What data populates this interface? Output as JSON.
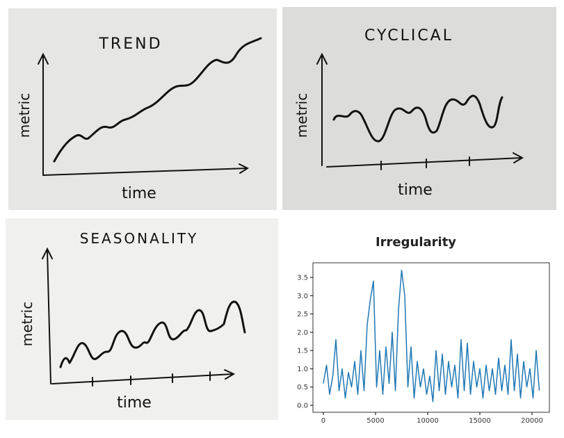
{
  "panels": {
    "trend": {
      "title": "TREND",
      "y_label": "metric",
      "x_label": "time"
    },
    "cyclical": {
      "title": "CYCLICAL",
      "y_label": "metric",
      "x_label": "time"
    },
    "seasonality": {
      "title": "SEASONALITY",
      "y_label": "metric",
      "x_label": "time"
    }
  },
  "chart_data": {
    "type": "line",
    "title": "Irregularity",
    "x": [
      0,
      300,
      600,
      900,
      1200,
      1500,
      1800,
      2100,
      2400,
      2700,
      3000,
      3300,
      3600,
      3900,
      4200,
      4500,
      4800,
      5100,
      5400,
      5700,
      6000,
      6300,
      6600,
      6900,
      7200,
      7500,
      7800,
      8100,
      8400,
      8700,
      9000,
      9300,
      9600,
      9900,
      10200,
      10500,
      10800,
      11100,
      11400,
      11700,
      12000,
      12300,
      12600,
      12900,
      13200,
      13500,
      13800,
      14100,
      14400,
      14700,
      15000,
      15300,
      15600,
      15900,
      16200,
      16500,
      16800,
      17100,
      17400,
      17700,
      18000,
      18300,
      18600,
      18900,
      19200,
      19500,
      19800,
      20100,
      20400,
      20700
    ],
    "series": [
      {
        "color": "#1f77b4",
        "values": [
          0.6,
          1.1,
          0.3,
          0.8,
          1.8,
          0.4,
          1.0,
          0.2,
          0.9,
          0.5,
          1.2,
          0.3,
          1.5,
          0.4,
          2.2,
          2.9,
          3.4,
          0.5,
          1.5,
          0.3,
          1.6,
          0.6,
          2.0,
          0.4,
          2.6,
          3.7,
          3.0,
          0.5,
          1.6,
          0.2,
          1.2,
          0.5,
          1.0,
          0.3,
          0.8,
          0.1,
          1.5,
          0.4,
          1.4,
          0.3,
          1.2,
          0.5,
          1.1,
          0.2,
          1.8,
          0.4,
          1.7,
          0.3,
          1.2,
          0.5,
          1.0,
          0.2,
          1.1,
          0.4,
          1.0,
          0.3,
          1.3,
          0.4,
          1.1,
          0.3,
          1.8,
          0.4,
          1.4,
          0.2,
          1.2,
          0.5,
          1.0,
          0.2,
          1.5,
          0.4
        ]
      }
    ],
    "xlim": [
      -1000,
      21667
    ],
    "ylim": [
      -0.19,
      3.9
    ],
    "xticks": [
      0,
      5000,
      10000,
      15000,
      20000
    ],
    "yticks": [
      {
        "value": 0,
        "label": "0.0"
      },
      0.5,
      {
        "value": 1,
        "label": "1.0"
      },
      1.5,
      {
        "value": 2,
        "label": "2.0"
      },
      2.5,
      {
        "value": 3,
        "label": "3.0"
      },
      3.5
    ]
  }
}
